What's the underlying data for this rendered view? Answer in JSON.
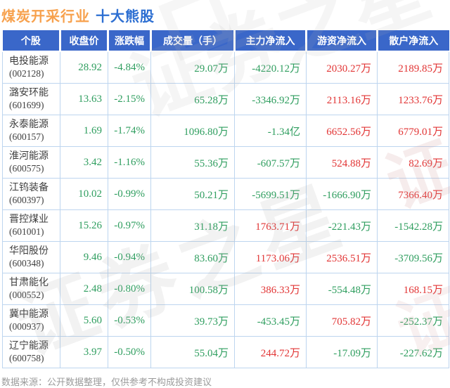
{
  "title": {
    "industry": "煤炭开采行业",
    "suffix": "十大熊股"
  },
  "watermark": {
    "text": "证券之星"
  },
  "footer": "数据来源：公开数据整理，仅供参考不构成投资建议",
  "colors": {
    "header_bg": "#3a67c9",
    "title_orange": "#f7a14d",
    "title_blue": "#2d6fd2",
    "down_green": "#2f9e5f",
    "up_red": "#e23535",
    "grid_border": "#bdd5ef"
  },
  "table": {
    "columns": [
      "个股",
      "收盘价",
      "涨跌幅",
      "成交量（手）",
      "主力净流入",
      "游资净流入",
      "散户净流入"
    ],
    "rows": [
      {
        "name": "电投能源",
        "code": "(002128)",
        "close": "28.92",
        "change": "-4.84%",
        "volume": "29.07万",
        "main": "-4220.12万",
        "hot": "2030.27万",
        "retail": "2189.85万"
      },
      {
        "name": "潞安环能",
        "code": "(601699)",
        "close": "13.63",
        "change": "-2.15%",
        "volume": "65.28万",
        "main": "-3346.92万",
        "hot": "2113.16万",
        "retail": "1233.76万"
      },
      {
        "name": "永泰能源",
        "code": "(600157)",
        "close": "1.69",
        "change": "-1.74%",
        "volume": "1096.80万",
        "main": "-1.34亿",
        "hot": "6652.56万",
        "retail": "6779.01万"
      },
      {
        "name": "淮河能源",
        "code": "(600575)",
        "close": "3.42",
        "change": "-1.16%",
        "volume": "55.36万",
        "main": "-607.57万",
        "hot": "524.88万",
        "retail": "82.69万"
      },
      {
        "name": "江钨装备",
        "code": "(600397)",
        "close": "10.02",
        "change": "-0.99%",
        "volume": "50.21万",
        "main": "-5699.51万",
        "hot": "-1666.90万",
        "retail": "7366.40万"
      },
      {
        "name": "晋控煤业",
        "code": "(601001)",
        "close": "15.26",
        "change": "-0.97%",
        "volume": "31.18万",
        "main": "1763.71万",
        "hot": "-221.43万",
        "retail": "-1542.28万"
      },
      {
        "name": "华阳股份",
        "code": "(600348)",
        "close": "9.46",
        "change": "-0.94%",
        "volume": "83.60万",
        "main": "1173.06万",
        "hot": "2536.51万",
        "retail": "-3709.56万"
      },
      {
        "name": "甘肃能化",
        "code": "(000552)",
        "close": "2.48",
        "change": "-0.80%",
        "volume": "100.58万",
        "main": "386.33万",
        "hot": "-554.48万",
        "retail": "168.15万"
      },
      {
        "name": "冀中能源",
        "code": "(000937)",
        "close": "5.60",
        "change": "-0.53%",
        "volume": "39.73万",
        "main": "-453.45万",
        "hot": "705.82万",
        "retail": "-252.37万"
      },
      {
        "name": "辽宁能源",
        "code": "(600758)",
        "close": "3.97",
        "change": "-0.50%",
        "volume": "55.04万",
        "main": "244.72万",
        "hot": "-17.09万",
        "retail": "-227.62万"
      }
    ]
  },
  "chart_data": {
    "type": "table",
    "title": "煤炭开采行业 十大熊股",
    "columns": [
      "个股",
      "收盘价",
      "涨跌幅",
      "成交量（手）",
      "主力净流入",
      "游资净流入",
      "散户净流入"
    ],
    "rows": [
      [
        "电投能源(002128)",
        28.92,
        "-4.84%",
        "29.07万",
        "-4220.12万",
        "2030.27万",
        "2189.85万"
      ],
      [
        "潞安环能(601699)",
        13.63,
        "-2.15%",
        "65.28万",
        "-3346.92万",
        "2113.16万",
        "1233.76万"
      ],
      [
        "永泰能源(600157)",
        1.69,
        "-1.74%",
        "1096.80万",
        "-1.34亿",
        "6652.56万",
        "6779.01万"
      ],
      [
        "淮河能源(600575)",
        3.42,
        "-1.16%",
        "55.36万",
        "-607.57万",
        "524.88万",
        "82.69万"
      ],
      [
        "江钨装备(600397)",
        10.02,
        "-0.99%",
        "50.21万",
        "-5699.51万",
        "-1666.90万",
        "7366.40万"
      ],
      [
        "晋控煤业(601001)",
        15.26,
        "-0.97%",
        "31.18万",
        "1763.71万",
        "-221.43万",
        "-1542.28万"
      ],
      [
        "华阳股份(600348)",
        9.46,
        "-0.94%",
        "83.60万",
        "1173.06万",
        "2536.51万",
        "-3709.56万"
      ],
      [
        "甘肃能化(000552)",
        2.48,
        "-0.80%",
        "100.58万",
        "386.33万",
        "-554.48万",
        "168.15万"
      ],
      [
        "冀中能源(000937)",
        5.6,
        "-0.53%",
        "39.73万",
        "-453.45万",
        "705.82万",
        "-252.37万"
      ],
      [
        "辽宁能源(600758)",
        3.97,
        "-0.50%",
        "55.04万",
        "244.72万",
        "-17.09万",
        "-227.62万"
      ]
    ],
    "color_convention": "negative values green, positive values red (CN market)"
  }
}
